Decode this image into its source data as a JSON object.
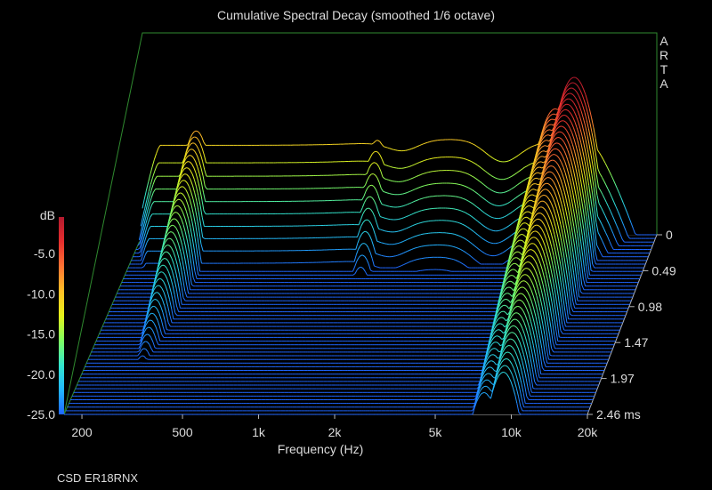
{
  "chart_data": {
    "type": "waterfall-3d",
    "title": "Cumulative Spectral Decay (smoothed 1/6 octave)",
    "xlabel": "Frequency (Hz)",
    "x_scale": "log",
    "xlim": [
      170,
      20000
    ],
    "x_ticks": [
      {
        "value": 200,
        "label": "200"
      },
      {
        "value": 500,
        "label": "500"
      },
      {
        "value": 1000,
        "label": "1k"
      },
      {
        "value": 2000,
        "label": "2k"
      },
      {
        "value": 5000,
        "label": "5k"
      },
      {
        "value": 10000,
        "label": "10k"
      },
      {
        "value": 20000,
        "label": "20k"
      }
    ],
    "zlabel": "dB",
    "zlim": [
      -25,
      0
    ],
    "z_ticks": [
      "-5.0",
      "-10.0",
      "-15.0",
      "-20.0",
      "-25.0"
    ],
    "time_ticks": [
      "0",
      "0.49",
      "0.98",
      "1.47",
      "1.97",
      "2.46 ms"
    ],
    "time_range_ms": [
      0,
      2.46
    ],
    "watermark": [
      "A",
      "R",
      "T",
      "A"
    ],
    "colorscale": [
      "#1f66ff",
      "#22b8ff",
      "#33e6cc",
      "#7fff60",
      "#e6f21a",
      "#ffbf26",
      "#ff7333",
      "#e62e2e",
      "#b31a2e"
    ],
    "resonances": [
      {
        "freq_hz": 280,
        "level_db": -8.5,
        "decay_ms": 1.2
      },
      {
        "freq_hz": 650,
        "level_db": -17.5,
        "decay_ms": 0.55
      },
      {
        "freq_hz": 1100,
        "level_db": -22.5,
        "decay_ms": 0.25
      },
      {
        "freq_hz": 1500,
        "level_db": -10,
        "decay_ms": 0.45
      },
      {
        "freq_hz": 7800,
        "level_db": -5,
        "decay_ms": 1.6
      },
      {
        "freq_hz": 9300,
        "level_db": 0,
        "decay_ms": 1.4
      }
    ]
  },
  "footer": "CSD ER18RNX"
}
